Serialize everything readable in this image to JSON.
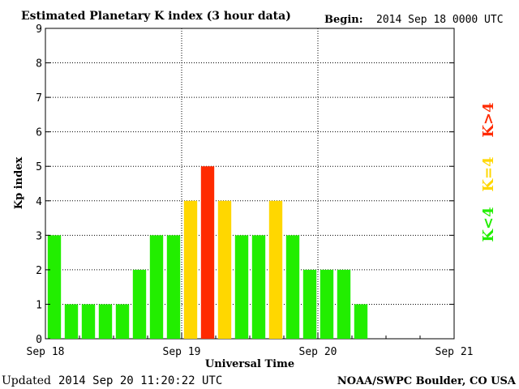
{
  "header": {
    "title": "Estimated Planetary K index (3 hour data)",
    "begin_label": "Begin:",
    "begin_value": "2014 Sep 18 0000 UTC"
  },
  "footer": {
    "updated_label": "Updated",
    "updated_value": "2014 Sep 20 11:20:22 UTC",
    "credit": "NOAA/SWPC Boulder, CO USA"
  },
  "legend": [
    {
      "label": "K<4",
      "color": "#22ee00"
    },
    {
      "label": "K=4",
      "color": "#ffd700"
    },
    {
      "label": "K>4",
      "color": "#ff2a00"
    }
  ],
  "chart_data": {
    "type": "bar",
    "title": "Estimated Planetary K index (3 hour data)",
    "xlabel": "Universal Time",
    "ylabel": "Kp index",
    "ylim": [
      0,
      9
    ],
    "yticks": [
      "0",
      "1",
      "2",
      "3",
      "4",
      "5",
      "6",
      "7",
      "8",
      "9"
    ],
    "xlim_days": [
      0,
      3
    ],
    "xticks": [
      "Sep 18",
      "Sep 19",
      "Sep 20",
      "Sep 21"
    ],
    "grid": true,
    "bar_interval_hours": 3,
    "values": [
      3,
      1,
      1,
      1,
      1,
      2,
      3,
      3,
      4,
      5,
      4,
      3,
      3,
      4,
      3,
      2,
      2,
      2,
      1
    ],
    "thresholds": {
      "quiet_below": 4,
      "active_equal": 4,
      "storm_above": 4
    },
    "colors": {
      "below": "#22ee00",
      "equal": "#ffd700",
      "above": "#ff2a00"
    }
  }
}
